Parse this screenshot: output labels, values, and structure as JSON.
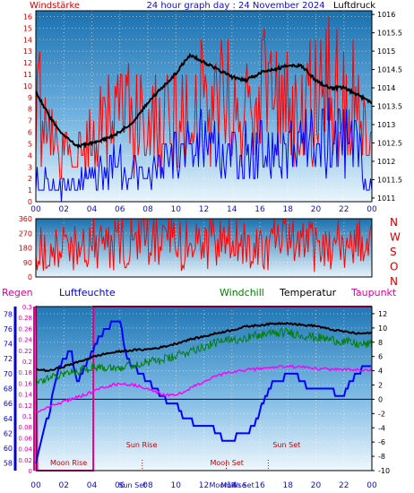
{
  "chart_data": [
    {
      "type": "line",
      "title": "24 hour graph day : 24 November 2024",
      "left_axis_label": "Windstärke",
      "right_axis_label": "Luftdruck",
      "x_ticks": [
        "00",
        "02",
        "04",
        "06",
        "08",
        "10",
        "12",
        "14",
        "16",
        "18",
        "20",
        "22",
        "00"
      ],
      "left_ticks": [
        0,
        1,
        2,
        3,
        4,
        5,
        6,
        7,
        8,
        9,
        10,
        11,
        12,
        13,
        14,
        15,
        16
      ],
      "right_ticks": [
        1011,
        1011.5,
        1012,
        1012.5,
        1013,
        1013.5,
        1014,
        1014.5,
        1015,
        1015.5,
        1016
      ],
      "left_range": [
        0,
        16.5
      ],
      "right_range": [
        1010.9,
        1016.1
      ],
      "series": [
        {
          "name": "Luftdruck",
          "axis": "right",
          "color": "#000000",
          "x": [
            0,
            1,
            2,
            3,
            4,
            5,
            6,
            7,
            8,
            9,
            10,
            11,
            12,
            13,
            14,
            15,
            16,
            17,
            18,
            19,
            20,
            21,
            22,
            23,
            24
          ],
          "y": [
            1013.9,
            1013.2,
            1012.7,
            1012.4,
            1012.5,
            1012.6,
            1012.8,
            1013.1,
            1013.6,
            1014.0,
            1014.4,
            1014.9,
            1014.7,
            1014.5,
            1014.3,
            1014.2,
            1014.4,
            1014.5,
            1014.6,
            1014.6,
            1014.2,
            1014.0,
            1014.0,
            1013.8,
            1013.6
          ]
        },
        {
          "name": "Windstärke Böen",
          "axis": "left",
          "color": "#ff0000",
          "x": [
            0,
            1,
            2,
            3,
            4,
            5,
            6,
            7,
            8,
            9,
            10,
            11,
            12,
            13,
            14,
            15,
            16,
            17,
            18,
            19,
            20,
            21,
            22,
            23,
            24
          ],
          "y": [
            12,
            8,
            6,
            6,
            8,
            9,
            10,
            11,
            9,
            9,
            11,
            12,
            13,
            12,
            11,
            12,
            13,
            12,
            12,
            12,
            13,
            14,
            14,
            11,
            9
          ]
        },
        {
          "name": "Windstärke Mittel",
          "axis": "left",
          "color": "#0000ff",
          "x": [
            0,
            1,
            2,
            3,
            4,
            5,
            6,
            7,
            8,
            9,
            10,
            11,
            12,
            13,
            14,
            15,
            16,
            17,
            18,
            19,
            20,
            21,
            22,
            23,
            24
          ],
          "y": [
            3,
            2,
            2,
            2,
            4,
            4,
            5,
            4,
            3,
            5,
            6,
            6,
            7,
            6,
            6,
            6,
            7,
            6,
            6,
            7,
            7,
            8,
            7,
            6,
            3
          ]
        }
      ]
    },
    {
      "type": "line",
      "left_ticks": [
        0,
        90,
        180,
        270,
        360
      ],
      "right_labels": [
        "N",
        "W",
        "S",
        "O",
        "N"
      ],
      "left_range": [
        0,
        360
      ],
      "series": [
        {
          "name": "Windrichtung",
          "color": "#ff0000",
          "x": [
            0,
            2,
            4,
            6,
            8,
            10,
            12,
            14,
            16,
            18,
            20,
            22,
            24
          ],
          "y": [
            200,
            180,
            210,
            190,
            230,
            200,
            210,
            220,
            200,
            210,
            190,
            200,
            210
          ]
        }
      ]
    },
    {
      "type": "line",
      "labels": {
        "regen": "Regen",
        "luftfeuchte": "Luftfeuchte",
        "windchill": "Windchill",
        "temperatur": "Temperatur",
        "taupunkt": "Taupunkt"
      },
      "x_ticks": [
        "00",
        "02",
        "04",
        "06",
        "08",
        "10",
        "12",
        "14",
        "16",
        "18",
        "20",
        "22",
        "00"
      ],
      "humidity_ticks": [
        58,
        60,
        62,
        64,
        66,
        68,
        70,
        72,
        74,
        76,
        78
      ],
      "rain_ticks": [
        0,
        0.02,
        0.04,
        0.06,
        0.08,
        0.1,
        0.12,
        0.14,
        0.16,
        0.18,
        0.2,
        0.22,
        0.24,
        0.26,
        0.28,
        0.3
      ],
      "temp_ticks": [
        -10,
        -8,
        -6,
        -4,
        -2,
        0,
        2,
        4,
        6,
        8,
        10,
        12
      ],
      "humidity_range": [
        57,
        79
      ],
      "rain_range": [
        0,
        0.3
      ],
      "temp_range": [
        -10,
        13
      ],
      "events": [
        {
          "label": "Moon Rise",
          "x": 0.0
        },
        {
          "label": "Sun Rise",
          "x": 7.6
        },
        {
          "label": "Moon Set",
          "x": 13.6
        },
        {
          "label": "Sun Set",
          "x": 16.6
        }
      ],
      "bottom_overlap_labels": [
        "Sun Set",
        "Moon Rise",
        "Moon Set"
      ],
      "series": [
        {
          "name": "Temperatur",
          "axis": "temp",
          "color": "#000000",
          "x": [
            0,
            1,
            2,
            3,
            4,
            5,
            6,
            7,
            8,
            9,
            10,
            11,
            12,
            13,
            14,
            15,
            16,
            17,
            18,
            19,
            20,
            21,
            22,
            23,
            24
          ],
          "y": [
            4.2,
            4.0,
            4.6,
            5.2,
            5.9,
            6.4,
            6.7,
            6.9,
            7.0,
            7.3,
            7.8,
            8.4,
            8.8,
            9.3,
            9.7,
            10.2,
            10.4,
            10.6,
            10.7,
            10.4,
            10.3,
            9.8,
            9.5,
            9.2,
            9.3
          ]
        },
        {
          "name": "Windchill",
          "axis": "temp",
          "color": "#008000",
          "x": [
            0,
            1,
            2,
            3,
            4,
            5,
            6,
            7,
            8,
            9,
            10,
            11,
            12,
            13,
            14,
            15,
            16,
            17,
            18,
            19,
            20,
            21,
            22,
            23,
            24
          ],
          "y": [
            2.8,
            2.9,
            3.5,
            4.0,
            4.5,
            4.6,
            4.5,
            4.9,
            5.2,
            5.5,
            6.0,
            6.8,
            7.4,
            8.0,
            8.3,
            8.7,
            9.0,
            9.3,
            9.4,
            9.0,
            8.7,
            8.4,
            8.1,
            7.7,
            7.7
          ]
        },
        {
          "name": "Taupunkt",
          "axis": "temp",
          "color": "#ff00ff",
          "x": [
            0,
            1,
            2,
            3,
            4,
            5,
            6,
            7,
            8,
            9,
            10,
            11,
            12,
            13,
            14,
            15,
            16,
            17,
            18,
            19,
            20,
            21,
            22,
            23,
            24
          ],
          "y": [
            -1.8,
            -1.0,
            -0.3,
            0.3,
            1.0,
            1.8,
            2.2,
            2.0,
            1.5,
            0.7,
            0.5,
            1.5,
            2.5,
            3.3,
            3.8,
            4.1,
            4.3,
            4.5,
            4.6,
            4.5,
            4.3,
            4.2,
            4.2,
            4.1,
            4.2
          ]
        },
        {
          "name": "Luftfeuchte",
          "axis": "humidity",
          "color": "#0000ff",
          "x": [
            0,
            0.5,
            1,
            1.5,
            2,
            2.5,
            3,
            3.5,
            4,
            4.5,
            5,
            5.5,
            6,
            6.5,
            7,
            7.5,
            8,
            8.5,
            9,
            9.5,
            10,
            10.5,
            11,
            11.5,
            12,
            12.5,
            13,
            13.5,
            14,
            14.5,
            15,
            15.5,
            16,
            16.5,
            17,
            17.5,
            18,
            18.5,
            19,
            19.5,
            20,
            20.5,
            21,
            21.5,
            22,
            22.5,
            23,
            23.5,
            24
          ],
          "y": [
            58,
            62,
            65,
            70,
            72,
            73,
            69,
            71,
            73,
            75,
            76,
            77,
            77,
            72,
            71,
            70,
            69,
            68,
            67,
            66,
            66,
            64,
            64,
            63,
            63,
            63,
            62,
            61,
            61,
            62,
            62,
            63,
            65,
            67,
            69,
            69,
            70,
            70,
            69,
            68,
            68,
            68,
            68,
            67,
            67,
            69,
            70,
            71,
            71
          ]
        },
        {
          "name": "Regen",
          "axis": "rain",
          "color": "#ff0080",
          "x": [
            0,
            0.01,
            0.1,
            4.1,
            4.11,
            24
          ],
          "y": [
            0.3,
            0.3,
            0.0,
            0.0,
            0.3,
            0.3
          ]
        }
      ]
    }
  ]
}
